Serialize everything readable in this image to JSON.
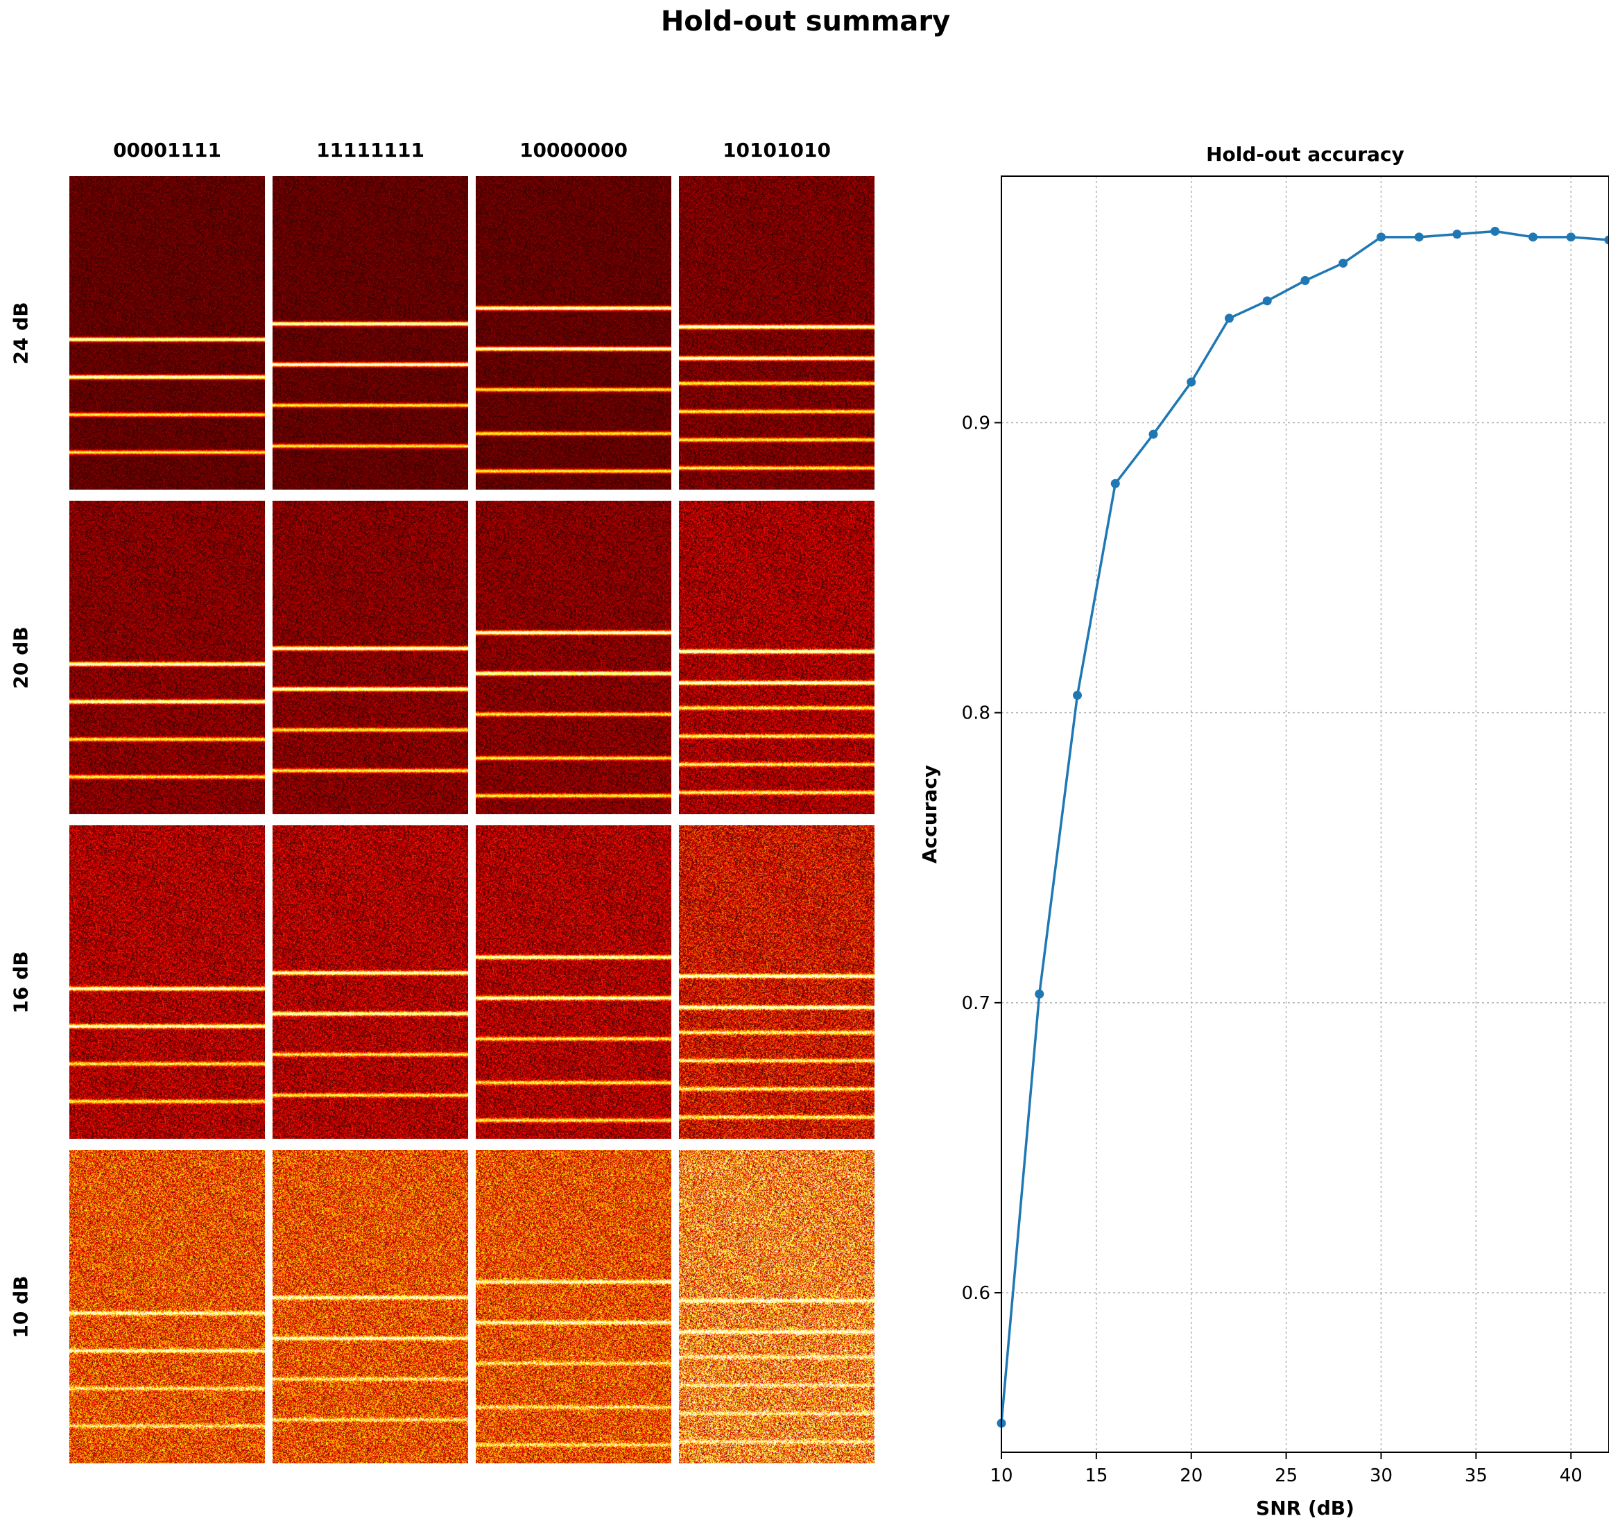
{
  "figure": {
    "suptitle": "Hold-out summary"
  },
  "grid": {
    "columns": [
      "00001111",
      "11111111",
      "10000000",
      "10101010"
    ],
    "rows": [
      "24 dB",
      "20 dB",
      "16 dB",
      "10 dB"
    ]
  },
  "colors": {
    "line": "#1f77b4",
    "grid": "#b0b0b0",
    "heatmap_low": "#000000",
    "heatmap_mid": "#cc1500",
    "heatmap_high": "#ffff66"
  },
  "chart_data": [
    {
      "type": "heatmap",
      "colormap": "hot",
      "column_labels": [
        "00001111",
        "11111111",
        "10000000",
        "10101010"
      ],
      "row_labels": [
        "24 dB",
        "20 dB",
        "16 dB",
        "10 dB"
      ]
    },
    {
      "type": "line",
      "title": "Hold-out accuracy",
      "xlabel": "SNR (dB)",
      "ylabel": "Accuracy",
      "xlim": [
        10,
        42
      ],
      "ylim": [
        0.545,
        0.985
      ],
      "xticks": [
        10,
        15,
        20,
        25,
        30,
        35,
        40
      ],
      "yticks": [
        0.6,
        0.7,
        0.8,
        0.9
      ],
      "grid": true,
      "series": [
        {
          "x": [
            10,
            12,
            14,
            16,
            18,
            20,
            22,
            24,
            26,
            28,
            30,
            32,
            34,
            36,
            38,
            40,
            42
          ],
          "values": [
            0.555,
            0.703,
            0.806,
            0.879,
            0.896,
            0.914,
            0.936,
            0.942,
            0.949,
            0.955,
            0.964,
            0.964,
            0.965,
            0.966,
            0.964,
            0.964,
            0.963
          ]
        }
      ]
    }
  ]
}
